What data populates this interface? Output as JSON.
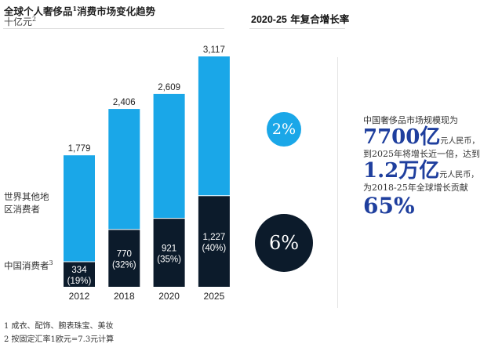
{
  "header": {
    "title": "全球个人奢侈品",
    "title_sup": "1",
    "title_rest": "消费市场变化趋势",
    "unit": "十亿元",
    "unit_sup": "2"
  },
  "legend": {
    "rest_of_world": "世界其他地区消费者",
    "china": "中国消费者",
    "china_sup": "3"
  },
  "cagr": {
    "heading_num": "2020-25",
    "heading_text": " 年复合增长率",
    "rest_of_world": "2%",
    "china": "6%"
  },
  "callout": {
    "line1": "中国奢侈品市场规模现为",
    "big1": "7700亿",
    "unit1": "元人民币，",
    "line2": "到2025年将增长近一倍，达到",
    "big2": "1.2万亿",
    "unit2": "元人民币，",
    "line3": "为2018-25年全球增长贡献",
    "big3": "65%"
  },
  "footnotes": [
    "1 成衣、配饰、腕表珠宝、美妆",
    "2 按固定汇率1欧元=7.3元计算"
  ],
  "colors": {
    "rest_of_world": "#1aa7e8",
    "china": "#0c1b2b",
    "accent_text": "#1f3f9e"
  },
  "chart_data": {
    "type": "bar",
    "stacked": true,
    "categories": [
      "2012",
      "2018",
      "2020",
      "2025"
    ],
    "series": [
      {
        "name": "中国消费者",
        "values": [
          334,
          770,
          921,
          1227
        ],
        "labels": [
          "334\n(19%)",
          "770\n(32%)",
          "921\n(35%)",
          "1,227\n(40%)"
        ]
      },
      {
        "name": "世界其他地区消费者",
        "values": [
          1445,
          1636,
          1688,
          1890
        ]
      }
    ],
    "totals": [
      "1,779",
      "2,406",
      "2,609",
      "3,117"
    ],
    "ylim": [
      0,
      3117
    ],
    "grid": false
  }
}
